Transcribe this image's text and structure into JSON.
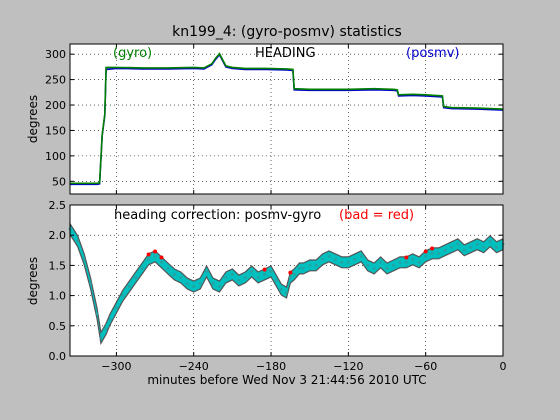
{
  "figure": {
    "title": "kn199_4: (gyro-posmv) statistics",
    "xlabel": "minutes before Wed Nov  3 21:44:56 2010 UTC",
    "background": "#bfbfbf",
    "axes_background": "#ffffff"
  },
  "chart_data": [
    {
      "type": "line",
      "title": "",
      "annotations": [
        {
          "text": "(gyro)",
          "color": "#008000"
        },
        {
          "text": "HEADING",
          "color": "#000000"
        },
        {
          "text": "(posmv)",
          "color": "#0000cc"
        }
      ],
      "ylabel": "degrees",
      "xlim": [
        -336,
        0
      ],
      "ylim": [
        25,
        320
      ],
      "yticks": [
        50,
        100,
        150,
        200,
        250,
        300
      ],
      "xticks": [
        -300,
        -240,
        -180,
        -120,
        -60,
        0
      ],
      "xtick_labels": [],
      "grid": true,
      "series": [
        {
          "name": "posmv",
          "color": "#0000cc",
          "x": [
            -336,
            -315,
            -313,
            -311,
            -309,
            -308,
            -300,
            -280,
            -260,
            -240,
            -232,
            -226,
            -223,
            -220,
            -215,
            -210,
            -200,
            -184,
            -168,
            -163,
            -162,
            -150,
            -120,
            -100,
            -85,
            -82,
            -81,
            -70,
            -60,
            -47,
            -46,
            -40,
            -20,
            0
          ],
          "y": [
            44,
            44,
            45,
            140,
            180,
            270,
            272,
            271,
            271,
            272,
            271,
            279,
            290,
            299,
            275,
            272,
            270,
            270,
            269,
            268,
            230,
            229,
            229,
            230,
            229,
            228,
            218,
            219,
            218,
            216,
            195,
            193,
            192,
            190
          ]
        },
        {
          "name": "gyro",
          "color": "#008000",
          "x": [
            -336,
            -315,
            -313,
            -311,
            -309,
            -308,
            -300,
            -280,
            -260,
            -240,
            -232,
            -226,
            -223,
            -220,
            -215,
            -210,
            -200,
            -184,
            -168,
            -163,
            -162,
            -150,
            -120,
            -100,
            -85,
            -82,
            -81,
            -70,
            -60,
            -47,
            -46,
            -40,
            -20,
            0
          ],
          "y": [
            46,
            46,
            47,
            142,
            182,
            274,
            274,
            273,
            273,
            274,
            273,
            281,
            292,
            301,
            277,
            274,
            272,
            272,
            271,
            270,
            232,
            231,
            231,
            232,
            231,
            230,
            220,
            221,
            220,
            218,
            197,
            195,
            194,
            192
          ]
        }
      ]
    },
    {
      "type": "scatter",
      "title": "",
      "annotations": [
        {
          "text": "heading correction: posmv-gyro",
          "color": "#000000"
        },
        {
          "text": "(bad = red)",
          "color": "#ff0000"
        }
      ],
      "ylabel": "degrees",
      "xlim": [
        -336,
        0
      ],
      "ylim": [
        0.0,
        2.5
      ],
      "yticks": [
        0.0,
        0.5,
        1.0,
        1.5,
        2.0,
        2.5
      ],
      "ytick_labels": [
        "0.0",
        "0.5",
        "1.0",
        "1.5",
        "2.0",
        "2.5"
      ],
      "xticks": [
        -300,
        -240,
        -180,
        -120,
        -60,
        0
      ],
      "xtick_labels": [
        "−300",
        "−240",
        "−180",
        "−120",
        "−60",
        "0"
      ],
      "grid": true,
      "band_colors": {
        "good": "#00bfbf",
        "edge": "#555555",
        "bad": "#ff0000"
      },
      "series": [
        {
          "name": "",
          "x": [
            -336,
            -330,
            -325,
            -320,
            -315,
            -312,
            -308,
            -305,
            -300,
            -295,
            -290,
            -285,
            -280,
            -275,
            -270,
            -265,
            -260,
            -255,
            -250,
            -245,
            -240,
            -235,
            -230,
            -225,
            -220,
            -215,
            -210,
            -205,
            -200,
            -195,
            -190,
            -185,
            -180,
            -176,
            -172,
            -168,
            -165,
            -162,
            -158,
            -155,
            -150,
            -145,
            -140,
            -135,
            -130,
            -125,
            -120,
            -115,
            -110,
            -105,
            -100,
            -95,
            -90,
            -85,
            -80,
            -75,
            -70,
            -65,
            -60,
            -55,
            -50,
            -45,
            -40,
            -35,
            -30,
            -25,
            -20,
            -15,
            -10,
            -5,
            0
          ],
          "y": [
            2.1,
            1.9,
            1.6,
            1.2,
            0.7,
            0.3,
            0.45,
            0.6,
            0.8,
            1.0,
            1.15,
            1.3,
            1.45,
            1.6,
            1.65,
            1.55,
            1.45,
            1.35,
            1.3,
            1.2,
            1.15,
            1.2,
            1.4,
            1.2,
            1.15,
            1.3,
            1.35,
            1.25,
            1.3,
            1.4,
            1.3,
            1.35,
            1.4,
            1.25,
            1.1,
            1.05,
            1.3,
            1.35,
            1.45,
            1.45,
            1.5,
            1.5,
            1.6,
            1.65,
            1.6,
            1.55,
            1.55,
            1.6,
            1.65,
            1.5,
            1.45,
            1.55,
            1.45,
            1.5,
            1.55,
            1.55,
            1.6,
            1.55,
            1.65,
            1.7,
            1.7,
            1.75,
            1.8,
            1.85,
            1.75,
            1.8,
            1.85,
            1.8,
            1.9,
            1.8,
            1.85
          ]
        }
      ]
    }
  ]
}
